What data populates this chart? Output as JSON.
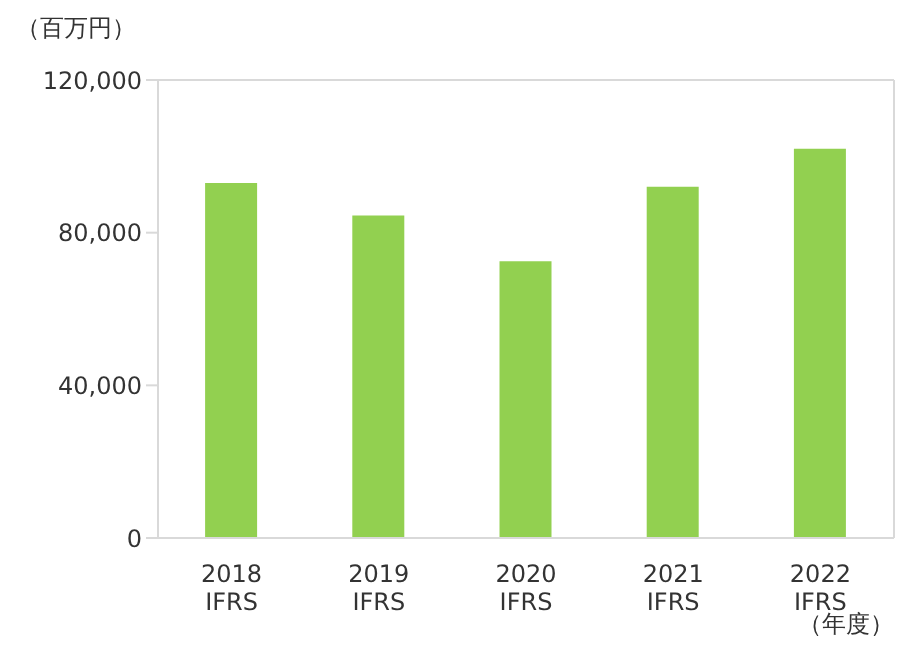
{
  "chart_data": {
    "type": "bar",
    "ylabel": "（百万円）",
    "xlabel": "（年度）",
    "categories": [
      "2018 IFRS",
      "2019 IFRS",
      "2020 IFRS",
      "2021 IFRS",
      "2022 IFRS"
    ],
    "values": [
      93000,
      84500,
      72500,
      92000,
      102000
    ],
    "color": "#92d050",
    "ylim": [
      0,
      120000
    ],
    "yticks": [
      0,
      {
        "value": 40000,
        "label": "40,000"
      },
      {
        "value": 80000,
        "label": "80,000"
      },
      {
        "value": 120000,
        "label": "120,000"
      }
    ],
    "grid": false
  }
}
